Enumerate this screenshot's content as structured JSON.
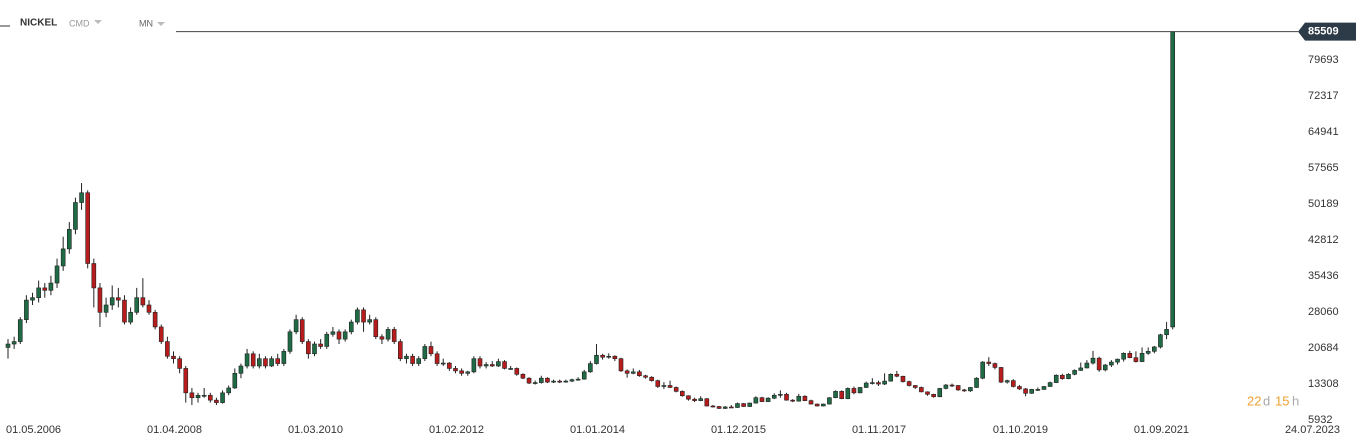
{
  "toolbar": {
    "symbol": "NICKEL",
    "market": "CMD",
    "interval": "MN"
  },
  "countdown": {
    "days": "22",
    "days_unit": "d",
    "hours": "15",
    "hours_unit": "h"
  },
  "chart_data": {
    "type": "candlestick",
    "last_price": 85509,
    "up_color": "#1e6b45",
    "down_color": "#b81c1c",
    "ylim": [
      1834,
      91998
    ],
    "yticks": [
      5932,
      13308,
      20684,
      28060,
      35436,
      42812,
      50189,
      57565,
      64941,
      72317,
      79693
    ],
    "categories": [
      "01.05.2006",
      null,
      null,
      null,
      null,
      null,
      null,
      null,
      null,
      null,
      null,
      null,
      null,
      null,
      null,
      null,
      null,
      null,
      null,
      null,
      null,
      null,
      null,
      "01.04.2008",
      null,
      null,
      null,
      null,
      null,
      null,
      null,
      null,
      null,
      null,
      null,
      null,
      null,
      null,
      null,
      null,
      null,
      null,
      null,
      null,
      null,
      null,
      "01.03.2010",
      null,
      null,
      null,
      null,
      null,
      null,
      null,
      null,
      null,
      null,
      null,
      null,
      null,
      null,
      null,
      null,
      null,
      null,
      null,
      null,
      null,
      null,
      "01.02.2012",
      null,
      null,
      null,
      null,
      null,
      null,
      null,
      null,
      null,
      null,
      null,
      null,
      null,
      null,
      null,
      null,
      null,
      null,
      null,
      null,
      null,
      null,
      "01.01.2014",
      null,
      null,
      null,
      null,
      null,
      null,
      null,
      null,
      null,
      null,
      null,
      null,
      null,
      null,
      null,
      null,
      null,
      null,
      null,
      null,
      null,
      null,
      "01.12.2015",
      null,
      null,
      null,
      null,
      null,
      null,
      null,
      null,
      null,
      null,
      null,
      null,
      null,
      null,
      null,
      null,
      null,
      null,
      null,
      null,
      null,
      null,
      "01.11.2017",
      null,
      null,
      null,
      null,
      null,
      null,
      null,
      null,
      null,
      null,
      null,
      null,
      null,
      null,
      null,
      null,
      null,
      null,
      null,
      null,
      null,
      null,
      "01.10.2019",
      null,
      null,
      null,
      null,
      null,
      null,
      null,
      null,
      null,
      null,
      null,
      null,
      null,
      null,
      null,
      null,
      null,
      null,
      null,
      null,
      null,
      null,
      "01.09.2021",
      null,
      null,
      null,
      null,
      null,
      null,
      null,
      null,
      null,
      null,
      null,
      null,
      null,
      null,
      null,
      null,
      null,
      null,
      null,
      null,
      null,
      "24.07.2023"
    ],
    "ohlc": [
      [
        20800,
        22500,
        18500,
        21500
      ],
      [
        21500,
        23000,
        20500,
        22000
      ],
      [
        22000,
        27000,
        21500,
        26500
      ],
      [
        26500,
        31500,
        25800,
        30500
      ],
      [
        30500,
        32000,
        29500,
        31000
      ],
      [
        31000,
        34500,
        30000,
        33000
      ],
      [
        33000,
        34000,
        31000,
        32500
      ],
      [
        32500,
        35500,
        31500,
        34000
      ],
      [
        34000,
        39000,
        33000,
        37500
      ],
      [
        37500,
        43500,
        36500,
        41000
      ],
      [
        41000,
        46500,
        40000,
        45000
      ],
      [
        45000,
        51500,
        44000,
        50500
      ],
      [
        50500,
        54500,
        49000,
        52500
      ],
      [
        52500,
        53000,
        37000,
        38000
      ],
      [
        38000,
        39000,
        29000,
        33000
      ],
      [
        33000,
        34000,
        25000,
        28000
      ],
      [
        28000,
        31000,
        27000,
        29500
      ],
      [
        29500,
        33500,
        28500,
        31000
      ],
      [
        31000,
        33000,
        29000,
        30500
      ],
      [
        30500,
        31500,
        25500,
        26000
      ],
      [
        26000,
        29000,
        25500,
        28000
      ],
      [
        28000,
        33000,
        27500,
        31000
      ],
      [
        31000,
        35000,
        29000,
        29500
      ],
      [
        29500,
        30500,
        27500,
        28000
      ],
      [
        28000,
        28500,
        24500,
        25000
      ],
      [
        25000,
        25500,
        21500,
        22000
      ],
      [
        22000,
        23000,
        18500,
        19000
      ],
      [
        19000,
        20000,
        17500,
        18500
      ],
      [
        18500,
        19000,
        15500,
        16500
      ],
      [
        16500,
        17000,
        9500,
        11500
      ],
      [
        11500,
        12500,
        9000,
        10500
      ],
      [
        10500,
        11500,
        9500,
        11000
      ],
      [
        11000,
        12500,
        10500,
        11000
      ],
      [
        11000,
        11500,
        9500,
        10000
      ],
      [
        10000,
        10500,
        9000,
        9500
      ],
      [
        9500,
        12000,
        9300,
        11500
      ],
      [
        11500,
        13000,
        11000,
        12500
      ],
      [
        12500,
        16500,
        12300,
        15500
      ],
      [
        15500,
        17500,
        14500,
        17000
      ],
      [
        17000,
        20500,
        16500,
        19500
      ],
      [
        19500,
        20000,
        16500,
        17000
      ],
      [
        17000,
        19500,
        16500,
        18500
      ],
      [
        18500,
        19000,
        16500,
        17000
      ],
      [
        17000,
        19000,
        16800,
        18500
      ],
      [
        18500,
        19500,
        17000,
        17500
      ],
      [
        17500,
        20500,
        17000,
        20000
      ],
      [
        20000,
        24500,
        19500,
        24000
      ],
      [
        24000,
        27500,
        23500,
        26500
      ],
      [
        26500,
        27000,
        21500,
        22000
      ],
      [
        22000,
        22500,
        18500,
        19500
      ],
      [
        19500,
        22000,
        19000,
        21500
      ],
      [
        21500,
        22500,
        20500,
        21000
      ],
      [
        21000,
        24000,
        20500,
        23500
      ],
      [
        23500,
        25000,
        23000,
        24000
      ],
      [
        24000,
        24500,
        21500,
        22500
      ],
      [
        22500,
        24500,
        22000,
        24000
      ],
      [
        24000,
        26500,
        23500,
        26000
      ],
      [
        26000,
        29000,
        25500,
        28500
      ],
      [
        28500,
        29000,
        24000,
        26000
      ],
      [
        26000,
        27500,
        25500,
        26500
      ],
      [
        26500,
        27000,
        22500,
        23000
      ],
      [
        23000,
        23500,
        21500,
        22500
      ],
      [
        22500,
        25000,
        22000,
        24500
      ],
      [
        24500,
        25000,
        21500,
        22000
      ],
      [
        22000,
        22500,
        18000,
        18500
      ],
      [
        18500,
        19500,
        17500,
        19000
      ],
      [
        19000,
        19500,
        17000,
        17500
      ],
      [
        17500,
        19000,
        17000,
        18500
      ],
      [
        18500,
        21500,
        18000,
        21000
      ],
      [
        21000,
        22000,
        19000,
        19500
      ],
      [
        19500,
        20000,
        17000,
        17500
      ],
      [
        17500,
        18500,
        17000,
        17600
      ],
      [
        17600,
        17800,
        16000,
        16500
      ],
      [
        16500,
        17000,
        15500,
        16000
      ],
      [
        16000,
        16500,
        15000,
        15500
      ],
      [
        15500,
        16000,
        15000,
        15800
      ],
      [
        15800,
        19000,
        15500,
        18500
      ],
      [
        18500,
        19000,
        16500,
        17000
      ],
      [
        17000,
        17800,
        16500,
        17300
      ],
      [
        17300,
        18000,
        16800,
        17000
      ],
      [
        17000,
        18500,
        16800,
        17900
      ],
      [
        17900,
        18200,
        16300,
        16500
      ],
      [
        16500,
        17000,
        16200,
        16500
      ],
      [
        16500,
        16700,
        15000,
        15300
      ],
      [
        15300,
        15500,
        14300,
        14500
      ],
      [
        14500,
        14700,
        13300,
        13500
      ],
      [
        13500,
        14000,
        13200,
        13600
      ],
      [
        13600,
        15000,
        13400,
        14500
      ],
      [
        14500,
        14700,
        13500,
        13700
      ],
      [
        13700,
        14200,
        13500,
        13900
      ],
      [
        13900,
        14200,
        13500,
        13800
      ],
      [
        13800,
        14200,
        13600,
        13900
      ],
      [
        13900,
        14400,
        13700,
        14200
      ],
      [
        14200,
        14700,
        14000,
        14300
      ],
      [
        14300,
        16200,
        14200,
        15800
      ],
      [
        15800,
        18000,
        15600,
        17500
      ],
      [
        17500,
        21500,
        17300,
        19200
      ],
      [
        19200,
        19500,
        18300,
        18800
      ],
      [
        18800,
        19600,
        18500,
        19000
      ],
      [
        19000,
        19200,
        18000,
        18500
      ],
      [
        18500,
        18700,
        15800,
        16000
      ],
      [
        16000,
        16300,
        14600,
        15500
      ],
      [
        15500,
        16500,
        15300,
        15800
      ],
      [
        15800,
        16200,
        14800,
        15000
      ],
      [
        15000,
        15200,
        14400,
        14700
      ],
      [
        14700,
        14900,
        13800,
        14000
      ],
      [
        14000,
        14200,
        12500,
        12800
      ],
      [
        12800,
        13700,
        12300,
        13000
      ],
      [
        13000,
        14000,
        12500,
        12600
      ],
      [
        12600,
        12800,
        11600,
        11800
      ],
      [
        11800,
        12000,
        10700,
        10900
      ],
      [
        10900,
        11000,
        9900,
        10200
      ],
      [
        10200,
        10500,
        9600,
        9900
      ],
      [
        9900,
        10800,
        9800,
        10300
      ],
      [
        10300,
        10400,
        8700,
        8800
      ],
      [
        8800,
        9000,
        8500,
        8700
      ],
      [
        8700,
        8800,
        8200,
        8300
      ],
      [
        8300,
        8800,
        8200,
        8600
      ],
      [
        8600,
        9000,
        8400,
        8500
      ],
      [
        8500,
        9500,
        8400,
        9300
      ],
      [
        9300,
        9400,
        8600,
        8700
      ],
      [
        8700,
        9500,
        8600,
        9400
      ],
      [
        9400,
        10800,
        9300,
        10500
      ],
      [
        10500,
        10700,
        9600,
        9700
      ],
      [
        9700,
        10600,
        9600,
        10400
      ],
      [
        10400,
        11400,
        10200,
        11000
      ],
      [
        11000,
        12000,
        10500,
        11200
      ],
      [
        11200,
        11500,
        9900,
        10000
      ],
      [
        10000,
        10200,
        9600,
        9800
      ],
      [
        9800,
        11300,
        9700,
        10800
      ],
      [
        10800,
        11000,
        9800,
        9900
      ],
      [
        9900,
        10100,
        9100,
        9200
      ],
      [
        9200,
        9300,
        8700,
        8800
      ],
      [
        8800,
        9300,
        8700,
        9200
      ],
      [
        9200,
        10600,
        9100,
        10500
      ],
      [
        10500,
        12000,
        10400,
        11800
      ],
      [
        11800,
        12000,
        10200,
        10300
      ],
      [
        10300,
        12600,
        10200,
        12400
      ],
      [
        12400,
        12800,
        11200,
        11500
      ],
      [
        11500,
        12700,
        11400,
        12600
      ],
      [
        12600,
        13800,
        12500,
        13500
      ],
      [
        13500,
        14500,
        13200,
        13600
      ],
      [
        13600,
        14000,
        12900,
        13300
      ],
      [
        13300,
        15500,
        13100,
        13900
      ],
      [
        13900,
        15500,
        13800,
        15300
      ],
      [
        15300,
        16000,
        14700,
        14900
      ],
      [
        14900,
        15000,
        13600,
        13800
      ],
      [
        13800,
        14000,
        12800,
        13000
      ],
      [
        13000,
        13100,
        12300,
        12600
      ],
      [
        12600,
        12800,
        11600,
        11700
      ],
      [
        11700,
        11800,
        10900,
        11200
      ],
      [
        11200,
        11300,
        10500,
        10700
      ],
      [
        10700,
        12500,
        10600,
        12400
      ],
      [
        12400,
        13300,
        12200,
        13100
      ],
      [
        13100,
        13400,
        12700,
        13000
      ],
      [
        13000,
        13100,
        11900,
        12100
      ],
      [
        12100,
        12300,
        11700,
        11900
      ],
      [
        11900,
        12700,
        11700,
        12600
      ],
      [
        12600,
        14700,
        12500,
        14500
      ],
      [
        14500,
        18000,
        14300,
        17800
      ],
      [
        17800,
        18800,
        17000,
        17500
      ],
      [
        17500,
        17700,
        16300,
        16700
      ],
      [
        16700,
        16800,
        13500,
        13700
      ],
      [
        13700,
        14200,
        13400,
        14000
      ],
      [
        14000,
        14300,
        12600,
        12800
      ],
      [
        12800,
        13100,
        12100,
        12300
      ],
      [
        12300,
        12500,
        10800,
        11400
      ],
      [
        11400,
        12300,
        11300,
        12200
      ],
      [
        12200,
        12600,
        11900,
        12200
      ],
      [
        12200,
        12900,
        12100,
        12800
      ],
      [
        12800,
        13800,
        12700,
        13600
      ],
      [
        13600,
        15300,
        13500,
        15100
      ],
      [
        15100,
        15400,
        14200,
        14400
      ],
      [
        14400,
        15500,
        14300,
        15300
      ],
      [
        15300,
        16300,
        15100,
        16100
      ],
      [
        16100,
        17700,
        16000,
        16600
      ],
      [
        16600,
        18200,
        16500,
        17600
      ],
      [
        17600,
        20100,
        17300,
        18600
      ],
      [
        18600,
        18900,
        15800,
        16200
      ],
      [
        16200,
        17400,
        15900,
        17200
      ],
      [
        17200,
        18200,
        16800,
        17800
      ],
      [
        17800,
        18500,
        17300,
        18400
      ],
      [
        18400,
        19800,
        17900,
        19600
      ],
      [
        19600,
        20100,
        18600,
        18700
      ],
      [
        18700,
        20000,
        17700,
        17900
      ],
      [
        17900,
        20800,
        17800,
        19600
      ],
      [
        19600,
        20800,
        19300,
        20000
      ],
      [
        20000,
        21100,
        19600,
        20900
      ],
      [
        20900,
        23600,
        20600,
        23400
      ],
      [
        23400,
        26000,
        22500,
        24500
      ],
      [
        25000,
        85509,
        24500,
        85509
      ],
      null,
      null,
      null,
      null,
      null,
      null,
      null,
      null,
      null,
      null,
      null,
      null,
      null,
      null,
      null,
      null
    ]
  }
}
